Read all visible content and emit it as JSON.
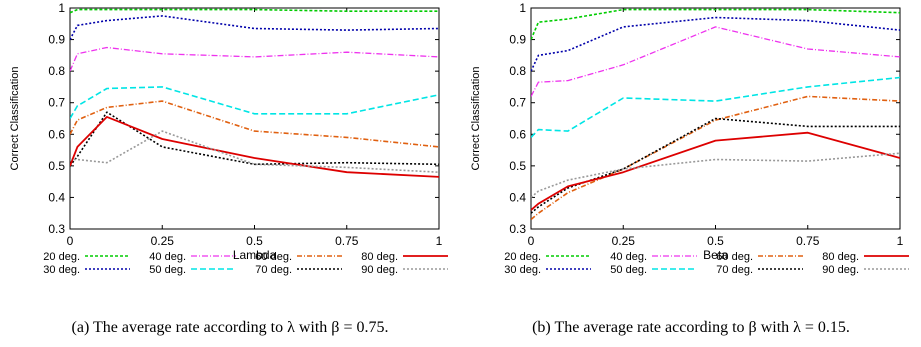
{
  "chart_data": [
    {
      "type": "line",
      "xlabel": "Lambda",
      "ylabel": "Correct Classification",
      "xlim": [
        0,
        1
      ],
      "ylim": [
        0.3,
        1
      ],
      "xticks": [
        "0",
        "0.25",
        "0.5",
        "0.75",
        "1"
      ],
      "yticks": [
        "0.3",
        "0.4",
        "0.5",
        "0.6",
        "0.7",
        "0.8",
        "0.9",
        "1"
      ],
      "legend_position": "bottom",
      "caption": "(a) The average rate according to λ with β = 0.75.",
      "series": [
        {
          "name": "20 deg.",
          "color": "#00cc00",
          "dash": "3,2",
          "width": 1.6,
          "x": [
            0,
            0.02,
            0.1,
            0.25,
            0.5,
            0.75,
            1
          ],
          "y": [
            0.985,
            0.995,
            0.995,
            0.995,
            0.995,
            0.99,
            0.99
          ]
        },
        {
          "name": "30 deg.",
          "color": "#0000aa",
          "dash": "2,2",
          "width": 1.6,
          "x": [
            0,
            0.02,
            0.1,
            0.25,
            0.5,
            0.75,
            1
          ],
          "y": [
            0.9,
            0.945,
            0.96,
            0.975,
            0.935,
            0.93,
            0.935
          ]
        },
        {
          "name": "40 deg.",
          "color": "#ee33ee",
          "dash": "6,2,1,2",
          "width": 1.3,
          "x": [
            0,
            0.02,
            0.1,
            0.25,
            0.5,
            0.75,
            1
          ],
          "y": [
            0.8,
            0.855,
            0.875,
            0.855,
            0.845,
            0.86,
            0.845
          ]
        },
        {
          "name": "50 deg.",
          "color": "#00e5e5",
          "dash": "6,3",
          "width": 1.6,
          "x": [
            0,
            0.02,
            0.1,
            0.25,
            0.5,
            0.75,
            1
          ],
          "y": [
            0.65,
            0.69,
            0.745,
            0.75,
            0.665,
            0.665,
            0.725
          ]
        },
        {
          "name": "60 deg.",
          "color": "#e06010",
          "dash": "5,2,1,2",
          "width": 1.6,
          "x": [
            0,
            0.02,
            0.1,
            0.25,
            0.5,
            0.75,
            1
          ],
          "y": [
            0.6,
            0.645,
            0.685,
            0.705,
            0.61,
            0.59,
            0.56
          ]
        },
        {
          "name": "70 deg.",
          "color": "#000000",
          "dash": "2,2",
          "width": 1.6,
          "x": [
            0,
            0.02,
            0.1,
            0.25,
            0.5,
            0.75,
            1
          ],
          "y": [
            0.5,
            0.53,
            0.67,
            0.56,
            0.505,
            0.51,
            0.505
          ]
        },
        {
          "name": "80 deg.",
          "color": "#dd0000",
          "dash": "",
          "width": 1.8,
          "x": [
            0,
            0.02,
            0.1,
            0.25,
            0.5,
            0.75,
            1
          ],
          "y": [
            0.5,
            0.56,
            0.655,
            0.585,
            0.525,
            0.48,
            0.465
          ]
        },
        {
          "name": "90 deg.",
          "color": "#999999",
          "dash": "2,2",
          "width": 1.6,
          "x": [
            0,
            0.02,
            0.1,
            0.25,
            0.5,
            0.75,
            1
          ],
          "y": [
            0.52,
            0.52,
            0.51,
            0.61,
            0.505,
            0.495,
            0.48
          ]
        }
      ]
    },
    {
      "type": "line",
      "xlabel": "Beta",
      "ylabel": "Correct Classification",
      "xlim": [
        0,
        1
      ],
      "ylim": [
        0.3,
        1
      ],
      "xticks": [
        "0",
        "0.25",
        "0.5",
        "0.75",
        "1"
      ],
      "yticks": [
        "0.3",
        "0.4",
        "0.5",
        "0.6",
        "0.7",
        "0.8",
        "0.9",
        "1"
      ],
      "legend_position": "bottom",
      "caption": "(b) The average rate according to β with λ = 0.15.",
      "series": [
        {
          "name": "20 deg.",
          "color": "#00cc00",
          "dash": "3,2",
          "width": 1.6,
          "x": [
            0,
            0.02,
            0.1,
            0.25,
            0.5,
            0.75,
            1
          ],
          "y": [
            0.9,
            0.955,
            0.965,
            0.995,
            0.995,
            0.995,
            0.985
          ]
        },
        {
          "name": "30 deg.",
          "color": "#0000aa",
          "dash": "2,2",
          "width": 1.6,
          "x": [
            0,
            0.02,
            0.1,
            0.25,
            0.5,
            0.75,
            1
          ],
          "y": [
            0.8,
            0.85,
            0.865,
            0.94,
            0.97,
            0.96,
            0.93
          ]
        },
        {
          "name": "40 deg.",
          "color": "#ee33ee",
          "dash": "6,2,1,2",
          "width": 1.3,
          "x": [
            0,
            0.02,
            0.1,
            0.25,
            0.5,
            0.75,
            1
          ],
          "y": [
            0.72,
            0.765,
            0.77,
            0.82,
            0.94,
            0.87,
            0.845
          ]
        },
        {
          "name": "50 deg.",
          "color": "#00e5e5",
          "dash": "6,3",
          "width": 1.6,
          "x": [
            0,
            0.02,
            0.1,
            0.25,
            0.5,
            0.75,
            1
          ],
          "y": [
            0.59,
            0.615,
            0.61,
            0.715,
            0.705,
            0.75,
            0.78
          ]
        },
        {
          "name": "60 deg.",
          "color": "#e06010",
          "dash": "5,2,1,2",
          "width": 1.6,
          "x": [
            0,
            0.02,
            0.1,
            0.25,
            0.5,
            0.75,
            1
          ],
          "y": [
            0.33,
            0.35,
            0.415,
            0.49,
            0.645,
            0.72,
            0.705
          ]
        },
        {
          "name": "70 deg.",
          "color": "#000000",
          "dash": "2,2",
          "width": 1.6,
          "x": [
            0,
            0.02,
            0.1,
            0.25,
            0.5,
            0.75,
            1
          ],
          "y": [
            0.35,
            0.37,
            0.43,
            0.49,
            0.65,
            0.625,
            0.625
          ]
        },
        {
          "name": "80 deg.",
          "color": "#dd0000",
          "dash": "",
          "width": 1.8,
          "x": [
            0,
            0.02,
            0.1,
            0.25,
            0.5,
            0.75,
            1
          ],
          "y": [
            0.36,
            0.38,
            0.435,
            0.48,
            0.58,
            0.605,
            0.525
          ]
        },
        {
          "name": "90 deg.",
          "color": "#999999",
          "dash": "2,2",
          "width": 1.6,
          "x": [
            0,
            0.02,
            0.1,
            0.25,
            0.5,
            0.75,
            1
          ],
          "y": [
            0.4,
            0.42,
            0.455,
            0.49,
            0.52,
            0.515,
            0.54
          ]
        }
      ]
    }
  ]
}
